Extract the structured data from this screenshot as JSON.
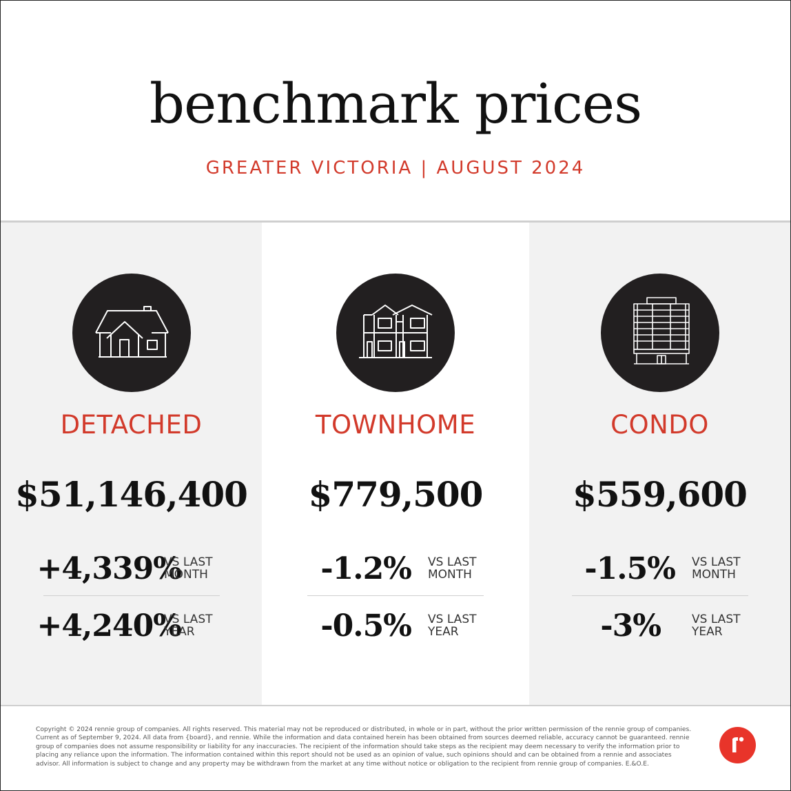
{
  "header": {
    "title": "benchmark prices",
    "subtitle": "GREATER VICTORIA | AUGUST 2024"
  },
  "colors": {
    "accent": "#d23a2b",
    "icon_circle": "#221f20",
    "panel_gray": "#f2f2f2",
    "logo": "#e8342a"
  },
  "property_types": [
    {
      "label": "DETACHED",
      "icon": "house-icon",
      "price": "$51,146,400",
      "month_change": "+4,339%",
      "month_label_1": "VS LAST",
      "month_label_2": "MONTH",
      "year_change": "+4,240%",
      "year_label_1": "VS LAST",
      "year_label_2": "YEAR"
    },
    {
      "label": "TOWNHOME",
      "icon": "townhome-icon",
      "price": "$779,500",
      "month_change": "-1.2%",
      "month_label_1": "VS LAST",
      "month_label_2": "MONTH",
      "year_change": "-0.5%",
      "year_label_1": "VS LAST",
      "year_label_2": "YEAR"
    },
    {
      "label": "CONDO",
      "icon": "condo-building-icon",
      "price": "$559,600",
      "month_change": "-1.5%",
      "month_label_1": "VS LAST",
      "month_label_2": "MONTH",
      "year_change": "-3%",
      "year_label_1": "VS LAST",
      "year_label_2": "YEAR"
    }
  ],
  "footer": {
    "disclaimer": "Copyright © 2024 rennie group of companies. All rights reserved. This material may not be reproduced or distributed, in whole or in part, without the prior written permission of the rennie group of companies. Current as of September 9, 2024. All data from {board}, and rennie. While the information and data contained herein has been obtained from sources deemed reliable, accuracy cannot be guaranteed. rennie group of companies does not assume responsibility or liability for any inaccuracies. The recipient of the information should take steps as the recipient may deem necessary to verify the information prior to placing any reliance upon the information. The information contained within this report should not be used as an opinion of value, such opinions should and can be obtained from a rennie and associates advisor. All information is subject to change and any property may be withdrawn from the market at any time without notice or obligation to the recipient from rennie group of companies. E.&O.E.",
    "logo_icon": "rennie-logo-icon"
  }
}
